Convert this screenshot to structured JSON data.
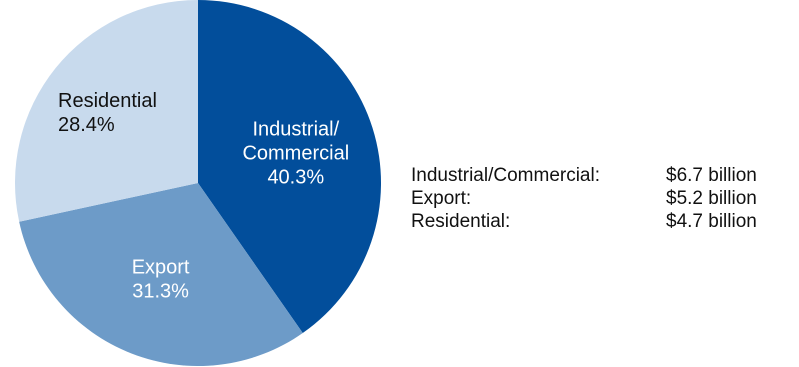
{
  "chart_data": {
    "type": "pie",
    "slices": [
      {
        "label_lines": [
          "Industrial/",
          "Commercial"
        ],
        "percent": 40.3,
        "percent_text": "40.3%",
        "color": "#024e9b",
        "text_color": "#ffffff"
      },
      {
        "label_lines": [
          "Export"
        ],
        "percent": 31.3,
        "percent_text": "31.3%",
        "color": "#6d9bc8",
        "text_color": "#ffffff"
      },
      {
        "label_lines": [
          "Residential"
        ],
        "percent": 28.4,
        "percent_text": "28.4%",
        "color": "#c8daed",
        "text_color": "#111111"
      }
    ],
    "start_angle_deg": 0,
    "direction": "clockwise"
  },
  "legend": [
    {
      "name": "Industrial/Commercial:",
      "value": "$6.7 billion"
    },
    {
      "name": "Export:",
      "value": "$5.2 billion"
    },
    {
      "name": "Residential:",
      "value": "$4.7 billion"
    }
  ]
}
